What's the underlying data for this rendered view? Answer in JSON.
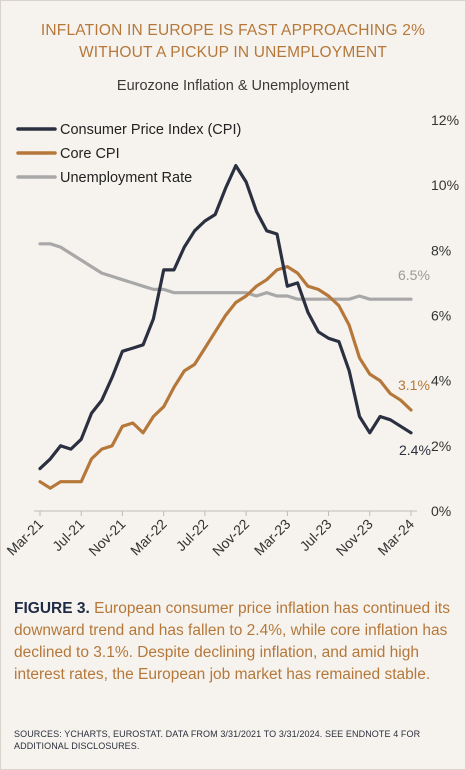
{
  "title_line1": "INFLATION IN EUROPE IS FAST APPROACHING 2%",
  "title_line2": "WITHOUT A PICKUP IN UNEMPLOYMENT",
  "subtitle": "Eurozone Inflation & Unemployment",
  "caption": {
    "lead": "FIGURE 3.",
    "text": " European consumer price inflation has continued its downward trend and has fallen to 2.4%, while core inflation has declined to 3.1%. Despite declining inflation, and amid high interest rates, the European job market has remained stable."
  },
  "sources": "SOURCES: YCHARTS, EUROSTAT. DATA FROM 3/31/2021 TO 3/31/2024. SEE ENDNOTE 4 FOR ADDITIONAL DISCLOSURES.",
  "chart_data": {
    "type": "line",
    "x_start": "Mar-21",
    "x_ticks": [
      "Mar-21",
      "Jul-21",
      "Nov-21",
      "Mar-22",
      "Jul-22",
      "Nov-22",
      "Mar-23",
      "Jul-23",
      "Nov-23",
      "Mar-24"
    ],
    "y_ticks": [
      "0%",
      "2%",
      "4%",
      "6%",
      "8%",
      "10%",
      "12%"
    ],
    "ylim": [
      0,
      12
    ],
    "legend_position": "top-left",
    "series": [
      {
        "name": "Consumer Price Index (CPI)",
        "color": "#2b3040",
        "end_label": "2.4%",
        "values": [
          1.3,
          1.6,
          2.0,
          1.9,
          2.2,
          3.0,
          3.4,
          4.1,
          4.9,
          5.0,
          5.1,
          5.9,
          7.4,
          7.4,
          8.1,
          8.6,
          8.9,
          9.1,
          9.9,
          10.6,
          10.1,
          9.2,
          8.6,
          8.5,
          6.9,
          7.0,
          6.1,
          5.5,
          5.3,
          5.2,
          4.3,
          2.9,
          2.4,
          2.9,
          2.8,
          2.6,
          2.4
        ]
      },
      {
        "name": "Core CPI",
        "color": "#b5783a",
        "end_label": "3.1%",
        "values": [
          0.9,
          0.7,
          0.9,
          0.9,
          0.9,
          1.6,
          1.9,
          2.0,
          2.6,
          2.7,
          2.4,
          2.9,
          3.2,
          3.8,
          4.3,
          4.5,
          5.0,
          5.5,
          6.0,
          6.4,
          6.6,
          6.9,
          7.1,
          7.4,
          7.5,
          7.3,
          6.9,
          6.8,
          6.6,
          6.3,
          5.7,
          4.7,
          4.2,
          4.0,
          3.6,
          3.4,
          3.1
        ]
      },
      {
        "name": "Unemployment Rate",
        "color": "#a8a8a8",
        "end_label": "6.5%",
        "values": [
          8.2,
          8.2,
          8.1,
          7.9,
          7.7,
          7.5,
          7.3,
          7.2,
          7.1,
          7.0,
          6.9,
          6.8,
          6.8,
          6.7,
          6.7,
          6.7,
          6.7,
          6.7,
          6.7,
          6.7,
          6.7,
          6.6,
          6.7,
          6.6,
          6.6,
          6.5,
          6.5,
          6.5,
          6.5,
          6.5,
          6.5,
          6.6,
          6.5,
          6.5,
          6.5,
          6.5,
          6.5
        ]
      }
    ]
  }
}
